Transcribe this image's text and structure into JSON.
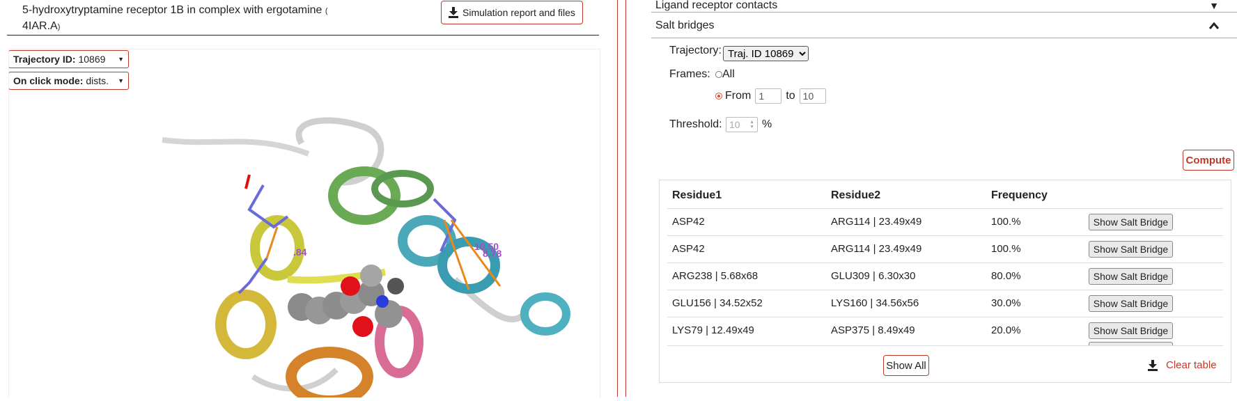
{
  "header": {
    "title": "5-hydroxytryptamine receptor 1B in complex with ergotamine",
    "pdb_open": "(",
    "pdb": "4IAR.A",
    "pdb_close": ")",
    "report_button": "Simulation report and files"
  },
  "viewer_controls": {
    "trajectory_label": "Trajectory ID:",
    "trajectory_value": "10869",
    "click_mode_label": "On click mode:",
    "click_mode_value": "dists."
  },
  "viewer": {
    "labels": [
      "10.50",
      "8.78",
      ".84"
    ]
  },
  "accordion": {
    "ligand_contacts": "Ligand receptor contacts",
    "salt_bridges": "Salt bridges"
  },
  "salt_bridges": {
    "trajectory_label": "Trajectory:",
    "trajectory_option": "Traj. ID 10869",
    "frames_label": "Frames:",
    "all_label": "All",
    "from_label": "From",
    "from_value": "1",
    "to_label": "to",
    "to_value": "10",
    "threshold_label": "Threshold:",
    "threshold_value": "10",
    "percent": "%",
    "compute_button": "Compute",
    "columns": [
      "Residue1",
      "Residue2",
      "Frequency"
    ],
    "rows": [
      {
        "residue1": "ASP42",
        "residue2": "ARG114 | 23.49x49",
        "frequency": "100.%",
        "button": "Show Salt Bridge"
      },
      {
        "residue1": "ASP42",
        "residue2": "ARG114 | 23.49x49",
        "frequency": "100.%",
        "button": "Show Salt Bridge"
      },
      {
        "residue1": "ARG238 | 5.68x68",
        "residue2": "GLU309 | 6.30x30",
        "frequency": "80.0%",
        "button": "Show Salt Bridge"
      },
      {
        "residue1": "GLU156 | 34.52x52",
        "residue2": "LYS160 | 34.56x56",
        "frequency": "30.0%",
        "button": "Show Salt Bridge"
      },
      {
        "residue1": "LYS79 | 12.49x49",
        "residue2": "ASP375 | 8.49x49",
        "frequency": "20.0%",
        "button": "Show Salt Bridge"
      }
    ],
    "show_all_button": "Show All",
    "clear_table": "Clear table"
  },
  "colors": {
    "accent": "#c0392b"
  }
}
